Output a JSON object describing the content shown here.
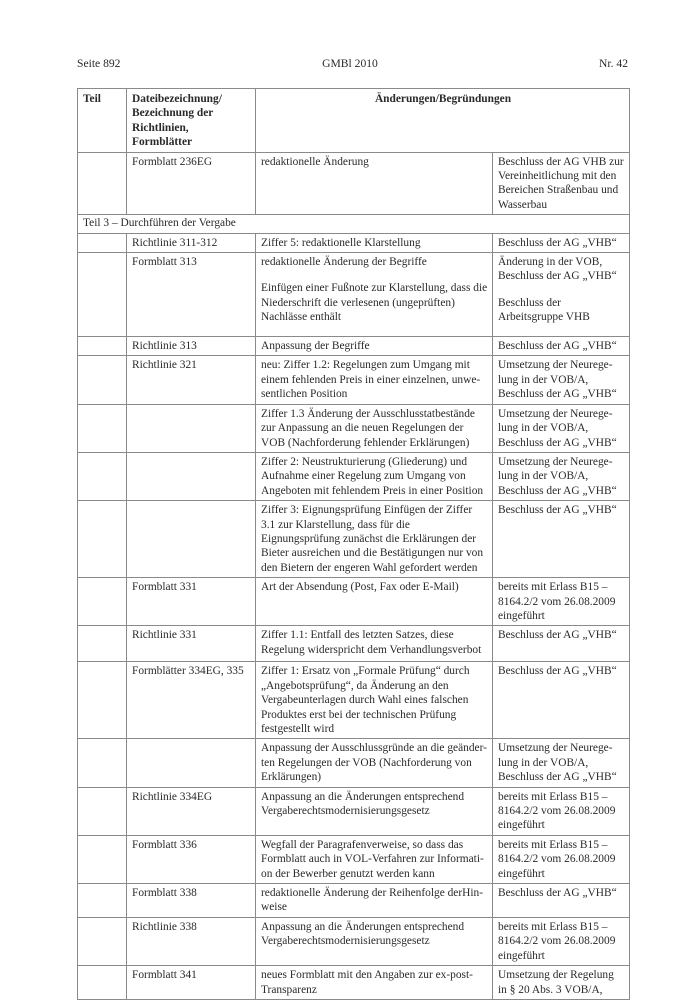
{
  "header": {
    "left": "Seite 892",
    "center": "GMBl 2010",
    "right": "Nr. 42"
  },
  "table": {
    "columns": [
      "Teil",
      "Dateibezeichnung/ Bezeichnung der Richtlinien, Formblätter",
      "Änderungen/Begründungen"
    ],
    "rows": [
      {
        "teil": "",
        "name": "Formblatt 236EG",
        "change": [
          "redaktionelle Änderung"
        ],
        "reason": [
          "Beschluss der AG VHB zur Vereinheitlichung mit den Bereichen Straßenbau und Wasserbau"
        ]
      },
      {
        "section": "Teil 3 – Durchführen der Vergabe"
      },
      {
        "teil": "",
        "name": "Richtlinie 311-312",
        "change": [
          "Ziffer 5: redaktionelle Klarstellung"
        ],
        "reason": [
          "Beschluss der AG „VHB“"
        ]
      },
      {
        "teil": "",
        "name": "Formblatt 313",
        "change": [
          "redaktionelle Änderung der Begriffe",
          "Einfügen einer Fußnote zur Klarstellung, dass die Niederschrift die verlesenen (ungeprüften) Nachlässe enthält"
        ],
        "reason": [
          "Änderung in der VOB, Beschluss der AG „VHB“",
          "Beschluss der Arbeitsgruppe VHB"
        ]
      },
      {
        "teil": "",
        "name": "Richtlinie 313",
        "change": [
          "Anpassung der Begriffe"
        ],
        "reason": [
          "Beschluss der AG „VHB“"
        ]
      },
      {
        "teil": "",
        "name": "Richtlinie 321",
        "change": [
          "neu: Ziffer 1.2: Regelungen zum Umgang mit einem fehlenden Preis in einer einzelnen, unwe-sentlichen Position"
        ],
        "reason": [
          "Umsetzung der Neurege-lung in der VOB/A, Beschluss der AG „VHB“"
        ]
      },
      {
        "teil": "",
        "name": "",
        "change": [
          "Ziffer 1.3 Änderung der Ausschlusstatbestände zur Anpassung an die neuen Regelungen der VOB (Nachforderung fehlender Erklärungen)"
        ],
        "reason": [
          "Umsetzung der Neurege-lung in der VOB/A, Beschluss der AG „VHB“"
        ]
      },
      {
        "teil": "",
        "name": "",
        "change": [
          "Ziffer 2: Neustrukturierung (Gliederung) und Aufnahme einer Regelung zum Umgang von Angeboten mit fehlendem Preis in einer Position"
        ],
        "reason": [
          "Umsetzung der Neurege-lung in der VOB/A, Beschluss der AG „VHB“"
        ]
      },
      {
        "teil": "",
        "name": "",
        "change": [
          "Ziffer 3: Eignungsprüfung Einfügen der Ziffer 3.1 zur Klarstellung, dass für die Eignungsprüfung zunächst die Erklärungen der Bieter ausreichen und die Bestätigungen nur von den Bietern der engeren Wahl gefordert werden"
        ],
        "reason": [
          "Beschluss der AG „VHB“"
        ]
      },
      {
        "teil": "",
        "name": "Formblatt 331",
        "change": [
          "Art der Absendung (Post, Fax oder E-Mail)"
        ],
        "reason": [
          "bereits mit Erlass B15 – 8164.2/2 vom 26.08.2009 eingeführt"
        ]
      },
      {
        "teil": "",
        "name": "Richtlinie 331",
        "change": [
          "Ziffer 1.1: Entfall des letzten Satzes, diese Regelung widerspricht dem Verhandlungsverbot"
        ],
        "reason": [
          "Beschluss der AG „VHB“"
        ]
      },
      {
        "teil": "",
        "name": "Formblätter 334EG, 335",
        "change": [
          "Ziffer 1: Ersatz von „Formale Prüfung“ durch „Angebotsprüfung“, da Änderung an den Vergabeunterlagen durch Wahl eines falschen Produktes erst bei der technischen Prüfung festgestellt wird"
        ],
        "reason": [
          "Beschluss der AG „VHB“"
        ]
      },
      {
        "teil": "",
        "name": "",
        "change": [
          "Anpassung der Ausschlussgründe an die geänder-ten Regelungen der VOB (Nachforderung von Erklärungen)"
        ],
        "reason": [
          "Umsetzung der Neurege-lung in der VOB/A, Beschluss der AG „VHB“"
        ]
      },
      {
        "teil": "",
        "name": "Richtlinie 334EG",
        "change": [
          "Anpassung an die Änderungen entsprechend Vergaberechtsmodernisierungsgesetz"
        ],
        "reason": [
          "bereits mit Erlass B15 – 8164.2/2 vom 26.08.2009 eingeführt"
        ]
      },
      {
        "teil": "",
        "name": "Formblatt 336",
        "change": [
          "Wegfall der Paragrafenverweise, so dass das Formblatt auch in VOL-Verfahren zur Informati-on der Bewerber genutzt werden kann"
        ],
        "reason": [
          "bereits mit Erlass B15 – 8164.2/2 vom 26.08.2009 eingeführt"
        ]
      },
      {
        "teil": "",
        "name": "Formblatt 338",
        "change": [
          "redaktionelle Änderung der Reihenfolge derHin-weise"
        ],
        "reason": [
          "Beschluss der AG „VHB“"
        ]
      },
      {
        "teil": "",
        "name": "Richtlinie 338",
        "change": [
          "Anpassung an die Änderungen entsprechend Vergaberechtsmodernisierungsgesetz"
        ],
        "reason": [
          "bereits mit Erlass B15 – 8164.2/2 vom 26.08.2009 eingeführt"
        ]
      },
      {
        "teil": "",
        "name": "Formblatt 341",
        "change": [
          "neues Formblatt mit den Angaben zur ex-post-Transparenz"
        ],
        "reason": [
          "Umsetzung der Regelung in § 20 Abs. 3 VOB/A,"
        ]
      }
    ]
  }
}
